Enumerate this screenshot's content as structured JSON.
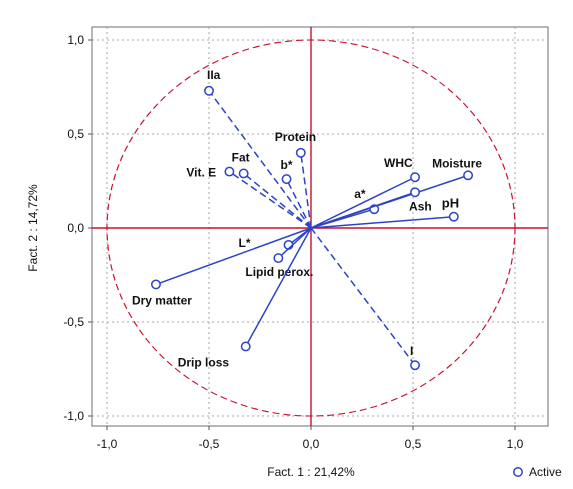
{
  "chart_data": {
    "type": "scatter",
    "xlabel": "Fact. 1  : 21,42%",
    "ylabel": "Fact. 2  : 14,72%",
    "xlim": [
      -1.0,
      1.0
    ],
    "ylim": [
      -1.0,
      1.0
    ],
    "xticks": [
      "-1,0",
      "-0,5",
      "0,0",
      "0,5",
      "1,0"
    ],
    "yticks": [
      "1,0",
      "0,5",
      "0,0",
      "-0,5",
      "-1,0"
    ],
    "grid": true,
    "legend_position": "bottom-right",
    "series": [
      {
        "name": "Active",
        "points": [
          {
            "label": "IIa",
            "x": -0.5,
            "y": 0.73,
            "line_style": "dashed"
          },
          {
            "label": "Protein",
            "x": -0.05,
            "y": 0.4,
            "line_style": "dashed"
          },
          {
            "label": "Fat",
            "x": -0.33,
            "y": 0.29,
            "line_style": "dashed"
          },
          {
            "label": "Vit. E",
            "x": -0.4,
            "y": 0.3,
            "line_style": "dashed"
          },
          {
            "label": "b*",
            "x": -0.12,
            "y": 0.26,
            "line_style": "dashed"
          },
          {
            "label": "WHC",
            "x": 0.51,
            "y": 0.27,
            "line_style": "solid"
          },
          {
            "label": "Moisture",
            "x": 0.77,
            "y": 0.28,
            "line_style": "solid"
          },
          {
            "label": "a*",
            "x": 0.31,
            "y": 0.1,
            "line_style": "solid"
          },
          {
            "label": "Ash",
            "x": 0.51,
            "y": 0.19,
            "line_style": "solid"
          },
          {
            "label": "pH",
            "x": 0.7,
            "y": 0.06,
            "line_style": "solid"
          },
          {
            "label": "L*",
            "x": -0.11,
            "y": -0.09,
            "line_style": "solid"
          },
          {
            "label": "Lipid perox.",
            "x": -0.16,
            "y": -0.16,
            "line_style": "solid"
          },
          {
            "label": "Dry matter",
            "x": -0.76,
            "y": -0.3,
            "line_style": "solid"
          },
          {
            "label": "Drip loss",
            "x": -0.32,
            "y": -0.63,
            "line_style": "solid"
          },
          {
            "label": "I",
            "x": 0.51,
            "y": -0.73,
            "line_style": "dashed"
          }
        ]
      }
    ],
    "legend": {
      "entries": [
        "Active"
      ]
    },
    "colors": {
      "axis_red": "#c8102e",
      "vector_blue": "#2d43c6",
      "grid_gray": "#a7a7a7",
      "text_dark": "#111111"
    }
  }
}
